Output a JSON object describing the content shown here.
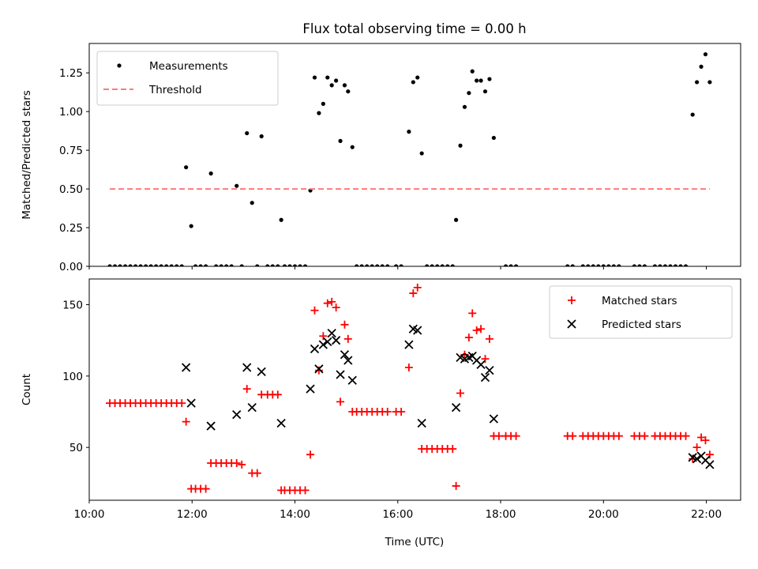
{
  "chart_data": [
    {
      "type": "scatter",
      "title": "Flux total observing time = 0.00 h",
      "xlabel": "",
      "ylabel": "Matched/Predicted stars",
      "xlim": [
        "10:00",
        "22:40"
      ],
      "ylim": [
        0,
        1.44
      ],
      "yticks": [
        "0.00",
        "0.25",
        "0.50",
        "0.75",
        "1.00",
        "1.25"
      ],
      "legend_position": "upper-left",
      "series": [
        {
          "name": "Measurements",
          "style": "dots",
          "color": "#000000",
          "points": [
            [
              "10:24",
              0
            ],
            [
              "10:30",
              0
            ],
            [
              "10:36",
              0
            ],
            [
              "10:42",
              0
            ],
            [
              "10:48",
              0
            ],
            [
              "10:54",
              0
            ],
            [
              "11:00",
              0
            ],
            [
              "11:06",
              0
            ],
            [
              "11:12",
              0
            ],
            [
              "11:18",
              0
            ],
            [
              "11:24",
              0
            ],
            [
              "11:30",
              0
            ],
            [
              "11:36",
              0
            ],
            [
              "11:42",
              0
            ],
            [
              "11:48",
              0
            ],
            [
              "11:53",
              0.64
            ],
            [
              "11:59",
              0.26
            ],
            [
              "12:04",
              0
            ],
            [
              "12:10",
              0
            ],
            [
              "12:16",
              0
            ],
            [
              "12:22",
              0.6
            ],
            [
              "12:28",
              0
            ],
            [
              "12:34",
              0
            ],
            [
              "12:40",
              0
            ],
            [
              "12:46",
              0
            ],
            [
              "12:52",
              0.52
            ],
            [
              "12:58",
              0
            ],
            [
              "13:04",
              0.86
            ],
            [
              "13:10",
              0.41
            ],
            [
              "13:16",
              0
            ],
            [
              "13:21",
              0.84
            ],
            [
              "13:28",
              0
            ],
            [
              "13:34",
              0
            ],
            [
              "13:40",
              0
            ],
            [
              "13:44",
              0.3
            ],
            [
              "13:48",
              0
            ],
            [
              "13:54",
              0
            ],
            [
              "14:00",
              0
            ],
            [
              "14:06",
              0
            ],
            [
              "14:12",
              0
            ],
            [
              "14:18",
              0.49
            ],
            [
              "14:23",
              1.22
            ],
            [
              "14:28",
              0.99
            ],
            [
              "14:33",
              1.05
            ],
            [
              "14:38",
              1.22
            ],
            [
              "14:43",
              1.17
            ],
            [
              "14:48",
              1.2
            ],
            [
              "14:53",
              0.81
            ],
            [
              "14:58",
              1.17
            ],
            [
              "15:02",
              1.13
            ],
            [
              "15:07",
              0.77
            ],
            [
              "15:12",
              0
            ],
            [
              "15:18",
              0
            ],
            [
              "15:24",
              0
            ],
            [
              "15:30",
              0
            ],
            [
              "15:36",
              0
            ],
            [
              "15:42",
              0
            ],
            [
              "15:48",
              0
            ],
            [
              "15:58",
              0
            ],
            [
              "16:04",
              0
            ],
            [
              "16:13",
              0.87
            ],
            [
              "16:18",
              1.19
            ],
            [
              "16:23",
              1.22
            ],
            [
              "16:28",
              0.73
            ],
            [
              "16:34",
              0
            ],
            [
              "16:40",
              0
            ],
            [
              "16:46",
              0
            ],
            [
              "16:52",
              0
            ],
            [
              "16:58",
              0
            ],
            [
              "17:04",
              0
            ],
            [
              "17:08",
              0.3
            ],
            [
              "17:13",
              0.78
            ],
            [
              "17:18",
              1.03
            ],
            [
              "17:23",
              1.12
            ],
            [
              "17:27",
              1.26
            ],
            [
              "17:32",
              1.2
            ],
            [
              "17:37",
              1.2
            ],
            [
              "17:42",
              1.13
            ],
            [
              "17:47",
              1.21
            ],
            [
              "17:52",
              0.83
            ],
            [
              "18:06",
              0
            ],
            [
              "18:12",
              0
            ],
            [
              "18:18",
              0
            ],
            [
              "19:18",
              0
            ],
            [
              "19:24",
              0
            ],
            [
              "19:36",
              0
            ],
            [
              "19:42",
              0
            ],
            [
              "19:48",
              0
            ],
            [
              "19:54",
              0
            ],
            [
              "20:00",
              0
            ],
            [
              "20:06",
              0
            ],
            [
              "20:12",
              0
            ],
            [
              "20:18",
              0
            ],
            [
              "20:36",
              0
            ],
            [
              "20:42",
              0
            ],
            [
              "20:48",
              0
            ],
            [
              "21:00",
              0
            ],
            [
              "21:06",
              0
            ],
            [
              "21:12",
              0
            ],
            [
              "21:18",
              0
            ],
            [
              "21:24",
              0
            ],
            [
              "21:30",
              0
            ],
            [
              "21:36",
              0
            ],
            [
              "21:44",
              0.98
            ],
            [
              "21:49",
              1.19
            ],
            [
              "21:54",
              1.29
            ],
            [
              "21:59",
              1.37
            ],
            [
              "22:04",
              1.19
            ]
          ]
        },
        {
          "name": "Threshold",
          "style": "dashed-line",
          "color": "#ff7a7a",
          "points": [
            [
              "10:24",
              0.5
            ],
            [
              "22:04",
              0.5
            ]
          ]
        }
      ]
    },
    {
      "type": "scatter",
      "title": "",
      "xlabel": "Time (UTC)",
      "ylabel": "Count",
      "xlim": [
        "10:00",
        "22:40"
      ],
      "ylim": [
        13,
        168
      ],
      "yticks": [
        "50",
        "100",
        "150"
      ],
      "xticks": [
        "10:00",
        "12:00",
        "14:00",
        "16:00",
        "18:00",
        "20:00",
        "22:00"
      ],
      "legend_position": "upper-right",
      "series": [
        {
          "name": "Matched stars",
          "marker": "+",
          "color": "#ff0000",
          "points": [
            [
              "10:24",
              81
            ],
            [
              "10:30",
              81
            ],
            [
              "10:36",
              81
            ],
            [
              "10:42",
              81
            ],
            [
              "10:48",
              81
            ],
            [
              "10:54",
              81
            ],
            [
              "11:00",
              81
            ],
            [
              "11:06",
              81
            ],
            [
              "11:12",
              81
            ],
            [
              "11:18",
              81
            ],
            [
              "11:24",
              81
            ],
            [
              "11:30",
              81
            ],
            [
              "11:36",
              81
            ],
            [
              "11:42",
              81
            ],
            [
              "11:48",
              81
            ],
            [
              "11:53",
              68
            ],
            [
              "11:59",
              21
            ],
            [
              "12:04",
              21
            ],
            [
              "12:10",
              21
            ],
            [
              "12:16",
              21
            ],
            [
              "12:22",
              39
            ],
            [
              "12:28",
              39
            ],
            [
              "12:34",
              39
            ],
            [
              "12:40",
              39
            ],
            [
              "12:46",
              39
            ],
            [
              "12:52",
              39
            ],
            [
              "12:58",
              38
            ],
            [
              "13:04",
              91
            ],
            [
              "13:10",
              32
            ],
            [
              "13:16",
              32
            ],
            [
              "13:21",
              87
            ],
            [
              "13:28",
              87
            ],
            [
              "13:34",
              87
            ],
            [
              "13:40",
              87
            ],
            [
              "13:44",
              20
            ],
            [
              "13:48",
              20
            ],
            [
              "13:54",
              20
            ],
            [
              "14:00",
              20
            ],
            [
              "14:06",
              20
            ],
            [
              "14:12",
              20
            ],
            [
              "14:18",
              45
            ],
            [
              "14:23",
              146
            ],
            [
              "14:28",
              104
            ],
            [
              "14:33",
              128
            ],
            [
              "14:38",
              151
            ],
            [
              "14:43",
              152
            ],
            [
              "14:48",
              148
            ],
            [
              "14:53",
              82
            ],
            [
              "14:58",
              136
            ],
            [
              "15:02",
              126
            ],
            [
              "15:07",
              75
            ],
            [
              "15:12",
              75
            ],
            [
              "15:18",
              75
            ],
            [
              "15:24",
              75
            ],
            [
              "15:30",
              75
            ],
            [
              "15:36",
              75
            ],
            [
              "15:42",
              75
            ],
            [
              "15:48",
              75
            ],
            [
              "15:58",
              75
            ],
            [
              "16:04",
              75
            ],
            [
              "16:13",
              106
            ],
            [
              "16:18",
              158
            ],
            [
              "16:23",
              162
            ],
            [
              "16:28",
              49
            ],
            [
              "16:34",
              49
            ],
            [
              "16:40",
              49
            ],
            [
              "16:46",
              49
            ],
            [
              "16:52",
              49
            ],
            [
              "16:58",
              49
            ],
            [
              "17:04",
              49
            ],
            [
              "17:08",
              23
            ],
            [
              "17:13",
              88
            ],
            [
              "17:18",
              115
            ],
            [
              "17:23",
              127
            ],
            [
              "17:27",
              144
            ],
            [
              "17:32",
              132
            ],
            [
              "17:37",
              133
            ],
            [
              "17:42",
              112
            ],
            [
              "17:47",
              126
            ],
            [
              "17:52",
              58
            ],
            [
              "17:58",
              58
            ],
            [
              "18:06",
              58
            ],
            [
              "18:12",
              58
            ],
            [
              "18:18",
              58
            ],
            [
              "19:18",
              58
            ],
            [
              "19:24",
              58
            ],
            [
              "19:36",
              58
            ],
            [
              "19:42",
              58
            ],
            [
              "19:48",
              58
            ],
            [
              "19:54",
              58
            ],
            [
              "20:00",
              58
            ],
            [
              "20:06",
              58
            ],
            [
              "20:12",
              58
            ],
            [
              "20:18",
              58
            ],
            [
              "20:36",
              58
            ],
            [
              "20:42",
              58
            ],
            [
              "20:48",
              58
            ],
            [
              "21:00",
              58
            ],
            [
              "21:06",
              58
            ],
            [
              "21:12",
              58
            ],
            [
              "21:18",
              58
            ],
            [
              "21:24",
              58
            ],
            [
              "21:30",
              58
            ],
            [
              "21:36",
              58
            ],
            [
              "21:44",
              42
            ],
            [
              "21:49",
              50
            ],
            [
              "21:54",
              57
            ],
            [
              "21:59",
              55
            ],
            [
              "22:04",
              45
            ]
          ]
        },
        {
          "name": "Predicted stars",
          "marker": "x",
          "color": "#000000",
          "points": [
            [
              "11:53",
              106
            ],
            [
              "11:59",
              81
            ],
            [
              "12:22",
              65
            ],
            [
              "12:52",
              73
            ],
            [
              "13:04",
              106
            ],
            [
              "13:10",
              78
            ],
            [
              "13:21",
              103
            ],
            [
              "13:44",
              67
            ],
            [
              "14:18",
              91
            ],
            [
              "14:23",
              119
            ],
            [
              "14:28",
              105
            ],
            [
              "14:33",
              122
            ],
            [
              "14:38",
              124
            ],
            [
              "14:43",
              130
            ],
            [
              "14:48",
              125
            ],
            [
              "14:53",
              101
            ],
            [
              "14:58",
              115
            ],
            [
              "15:02",
              111
            ],
            [
              "15:07",
              97
            ],
            [
              "16:13",
              122
            ],
            [
              "16:18",
              133
            ],
            [
              "16:23",
              132
            ],
            [
              "16:28",
              67
            ],
            [
              "17:08",
              78
            ],
            [
              "17:13",
              113
            ],
            [
              "17:18",
              112
            ],
            [
              "17:23",
              113
            ],
            [
              "17:27",
              114
            ],
            [
              "17:32",
              111
            ],
            [
              "17:37",
              108
            ],
            [
              "17:42",
              99
            ],
            [
              "17:47",
              104
            ],
            [
              "17:52",
              70
            ],
            [
              "21:44",
              43
            ],
            [
              "21:49",
              42
            ],
            [
              "21:54",
              44
            ],
            [
              "21:59",
              41
            ],
            [
              "22:04",
              38
            ]
          ]
        }
      ]
    }
  ]
}
